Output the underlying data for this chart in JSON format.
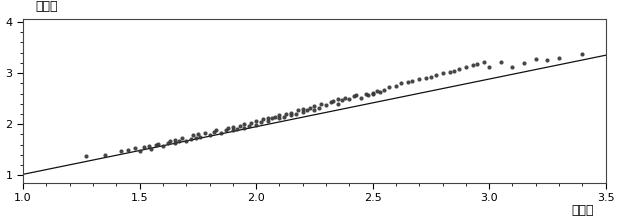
{
  "title": "",
  "xlabel": "化学値",
  "ylabel": "预测値",
  "xlim": [
    1.0,
    3.5
  ],
  "ylim": [
    0.85,
    4.05
  ],
  "xticks": [
    1.0,
    1.5,
    2.0,
    2.5,
    3.0,
    3.5
  ],
  "yticks": [
    1,
    2,
    3,
    4
  ],
  "line_x": [
    1.0,
    3.5
  ],
  "line_y": [
    1.02,
    3.35
  ],
  "dot_color": "#333333",
  "line_color": "#111111",
  "background_color": "#ffffff",
  "dot_size": 9,
  "dot_alpha": 0.9,
  "scatter_x": [
    1.27,
    1.35,
    1.42,
    1.45,
    1.48,
    1.5,
    1.52,
    1.54,
    1.55,
    1.57,
    1.58,
    1.6,
    1.62,
    1.63,
    1.65,
    1.65,
    1.67,
    1.68,
    1.7,
    1.72,
    1.73,
    1.74,
    1.75,
    1.76,
    1.78,
    1.8,
    1.82,
    1.83,
    1.85,
    1.87,
    1.88,
    1.9,
    1.9,
    1.92,
    1.93,
    1.95,
    1.95,
    1.97,
    1.98,
    2.0,
    2.0,
    2.02,
    2.03,
    2.05,
    2.05,
    2.07,
    2.08,
    2.1,
    2.1,
    2.12,
    2.13,
    2.15,
    2.15,
    2.17,
    2.18,
    2.2,
    2.2,
    2.22,
    2.23,
    2.25,
    2.25,
    2.27,
    2.28,
    2.3,
    2.32,
    2.33,
    2.35,
    2.35,
    2.37,
    2.38,
    2.4,
    2.42,
    2.43,
    2.45,
    2.47,
    2.48,
    2.5,
    2.5,
    2.52,
    2.53,
    2.55,
    2.57,
    2.6,
    2.62,
    2.65,
    2.67,
    2.7,
    2.73,
    2.75,
    2.77,
    2.8,
    2.83,
    2.85,
    2.87,
    2.9,
    2.93,
    2.95,
    2.98,
    3.0,
    3.05,
    3.1,
    3.15,
    3.2,
    3.25,
    3.3,
    3.4
  ],
  "scatter_y": [
    1.38,
    1.4,
    1.47,
    1.5,
    1.53,
    1.48,
    1.55,
    1.57,
    1.52,
    1.6,
    1.62,
    1.58,
    1.63,
    1.68,
    1.63,
    1.7,
    1.67,
    1.73,
    1.68,
    1.72,
    1.78,
    1.73,
    1.8,
    1.76,
    1.83,
    1.79,
    1.85,
    1.88,
    1.83,
    1.88,
    1.92,
    1.88,
    1.95,
    1.9,
    1.97,
    1.93,
    2.0,
    1.96,
    2.03,
    1.98,
    2.07,
    2.05,
    2.1,
    2.07,
    2.13,
    2.12,
    2.15,
    2.13,
    2.18,
    2.15,
    2.2,
    2.18,
    2.22,
    2.2,
    2.27,
    2.23,
    2.3,
    2.27,
    2.32,
    2.28,
    2.35,
    2.32,
    2.4,
    2.37,
    2.43,
    2.45,
    2.4,
    2.5,
    2.47,
    2.52,
    2.5,
    2.55,
    2.57,
    2.52,
    2.6,
    2.57,
    2.62,
    2.6,
    2.65,
    2.63,
    2.67,
    2.73,
    2.75,
    2.8,
    2.83,
    2.85,
    2.88,
    2.9,
    2.93,
    2.97,
    3.0,
    3.02,
    3.05,
    3.08,
    3.12,
    3.15,
    3.18,
    3.22,
    3.12,
    3.22,
    3.12,
    3.2,
    3.27,
    3.25,
    3.3,
    3.38
  ]
}
